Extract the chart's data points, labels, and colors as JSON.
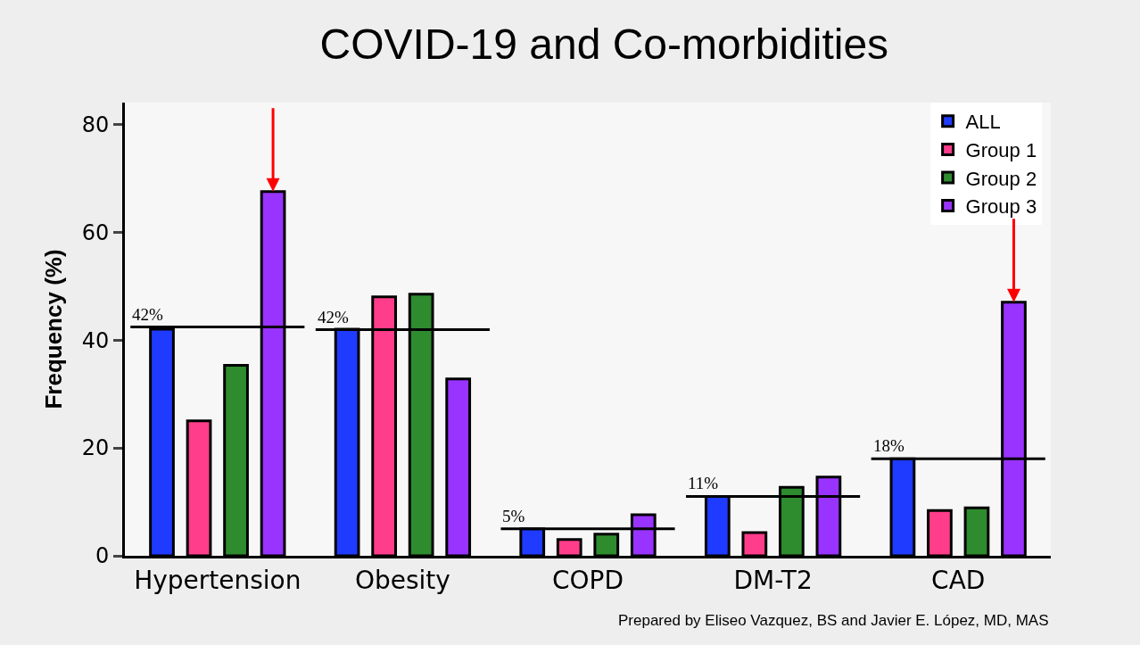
{
  "chart_data": {
    "type": "bar",
    "title": "COVID-19 and Co-morbidities",
    "ylabel": "Frequency (%)",
    "categories": [
      "Hypertension",
      "Obesity",
      "COPD",
      "DM-T2",
      "CAD"
    ],
    "series": [
      {
        "name": "ALL",
        "color": "#1f3bff",
        "values": [
          42,
          42,
          5,
          11,
          18
        ]
      },
      {
        "name": "Group 1",
        "color": "#ff3d8b",
        "values": [
          25,
          48,
          3,
          4.3,
          8.4
        ]
      },
      {
        "name": "Group 2",
        "color": "#2e8b2e",
        "values": [
          35.3,
          48.5,
          4,
          12.7,
          8.9
        ]
      },
      {
        "name": "Group 3",
        "color": "#9933ff",
        "values": [
          67.5,
          32.8,
          7.6,
          14.6,
          47
        ]
      }
    ],
    "ref_lines": [
      {
        "axis": "y",
        "value": 42.4,
        "label": "42%",
        "color": "#000000"
      },
      {
        "axis": "y",
        "value": 41.9,
        "label": "42%",
        "color": "#000000"
      },
      {
        "axis": "y",
        "value": 5,
        "label": "5%",
        "color": "#000000"
      },
      {
        "axis": "y",
        "value": 11,
        "label": "11%",
        "color": "#000000"
      },
      {
        "axis": "y",
        "value": 18,
        "label": "18%",
        "color": "#000000"
      }
    ],
    "ylim": [
      0,
      84
    ],
    "yticks": [
      0,
      20,
      40,
      60,
      80
    ],
    "grid": false,
    "legend": "top right",
    "annotations": [
      "Prepared by Eliseo Vazquez, BS and Javier E. López, MD, MAS"
    ]
  }
}
